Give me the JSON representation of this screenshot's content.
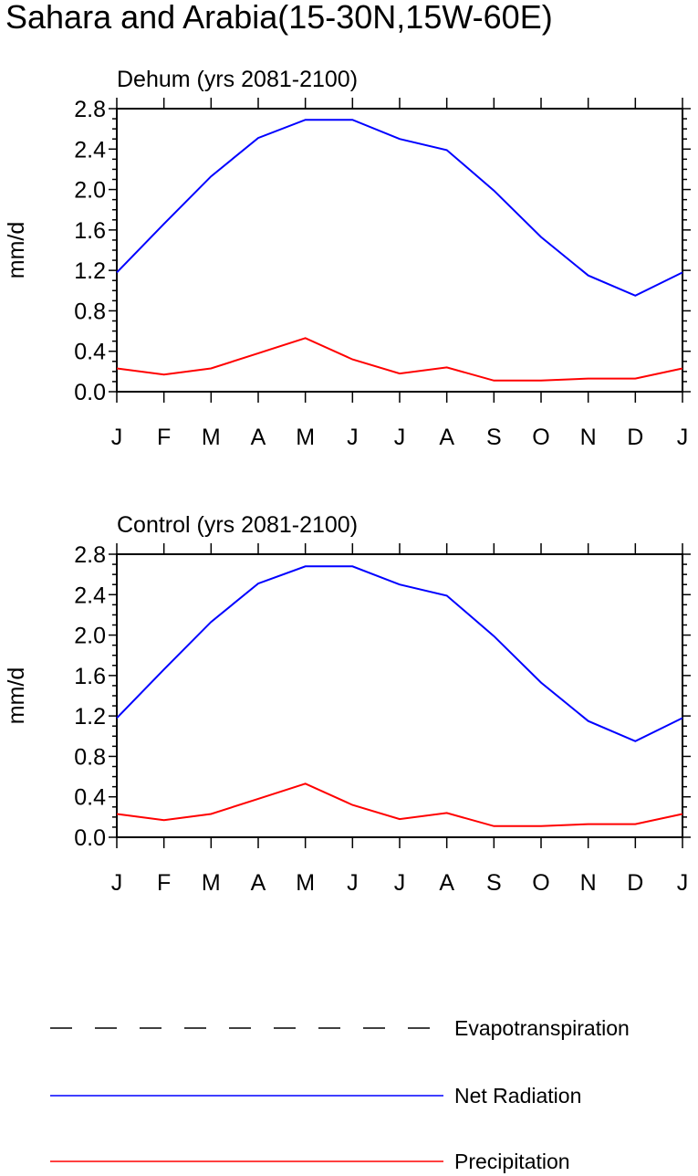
{
  "figure_title": "Sahara and Arabia(15-30N,15W-60E)",
  "legend": {
    "items": [
      {
        "label": "Evapotranspiration",
        "color": "#000000",
        "style": "dashed"
      },
      {
        "label": "Net Radiation",
        "color": "#0000ff",
        "style": "solid"
      },
      {
        "label": "Precipitation",
        "color": "#ff0000",
        "style": "solid"
      }
    ]
  },
  "chart_data": [
    {
      "type": "line",
      "title": "Dehum (yrs 2081-2100)",
      "xlabel": "",
      "ylabel": "mm/d",
      "categories": [
        "J",
        "F",
        "M",
        "A",
        "M",
        "J",
        "J",
        "A",
        "S",
        "O",
        "N",
        "D",
        "J"
      ],
      "ylim": [
        0,
        2.8
      ],
      "yticks": [
        "0.0",
        "0.4",
        "0.8",
        "1.2",
        "1.6",
        "2.0",
        "2.4",
        "2.8"
      ],
      "grid": false,
      "series": [
        {
          "name": "Net Radiation",
          "color": "#0000ff",
          "values": [
            1.18,
            1.66,
            2.13,
            2.51,
            2.69,
            2.69,
            2.5,
            2.39,
            1.99,
            1.53,
            1.15,
            0.95,
            1.18
          ]
        },
        {
          "name": "Precipitation",
          "color": "#ff0000",
          "values": [
            0.23,
            0.17,
            0.23,
            0.38,
            0.53,
            0.32,
            0.18,
            0.24,
            0.11,
            0.11,
            0.13,
            0.13,
            0.23
          ]
        }
      ]
    },
    {
      "type": "line",
      "title": "Control (yrs 2081-2100)",
      "xlabel": "",
      "ylabel": "mm/d",
      "categories": [
        "J",
        "F",
        "M",
        "A",
        "M",
        "J",
        "J",
        "A",
        "S",
        "O",
        "N",
        "D",
        "J"
      ],
      "ylim": [
        0,
        2.8
      ],
      "yticks": [
        "0.0",
        "0.4",
        "0.8",
        "1.2",
        "1.6",
        "2.0",
        "2.4",
        "2.8"
      ],
      "grid": false,
      "series": [
        {
          "name": "Net Radiation",
          "color": "#0000ff",
          "values": [
            1.18,
            1.66,
            2.13,
            2.51,
            2.68,
            2.68,
            2.5,
            2.39,
            1.99,
            1.53,
            1.15,
            0.95,
            1.18
          ]
        },
        {
          "name": "Precipitation",
          "color": "#ff0000",
          "values": [
            0.23,
            0.17,
            0.23,
            0.38,
            0.53,
            0.32,
            0.18,
            0.24,
            0.11,
            0.11,
            0.13,
            0.13,
            0.23
          ]
        }
      ]
    }
  ]
}
